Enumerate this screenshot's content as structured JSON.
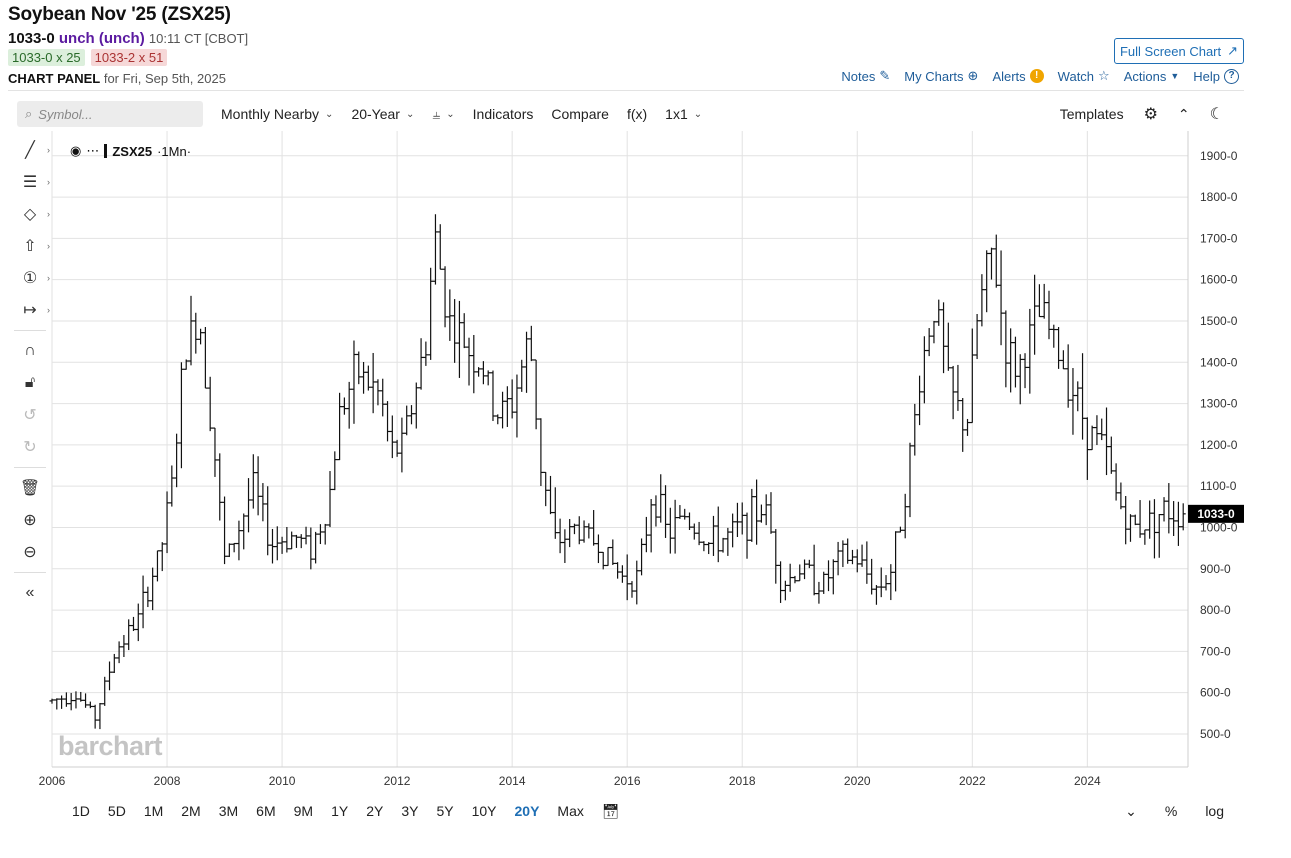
{
  "header": {
    "title": "Soybean Nov '25 (ZSX25)",
    "price": "1033-0",
    "change": "unch (unch)",
    "time": "10:11 CT [CBOT]",
    "bid": "1033-0 x 25",
    "ask": "1033-2 x 51",
    "panel_label": "CHART PANEL",
    "panel_date": "for Fri, Sep 5th, 2025"
  },
  "fullscreen_label": "Full Screen Chart",
  "toplinks": {
    "notes": "Notes",
    "mycharts": "My Charts",
    "alerts": "Alerts",
    "watch": "Watch",
    "actions": "Actions",
    "help": "Help"
  },
  "toolbar": {
    "search_placeholder": "Symbol...",
    "period": "Monthly Nearby",
    "range": "20-Year",
    "indicators": "Indicators",
    "compare": "Compare",
    "fx": "f(x)",
    "layout": "1x1",
    "templates": "Templates"
  },
  "legend": {
    "symbol": "ZSX25",
    "interval": "·1Mn·"
  },
  "watermark": "barchart",
  "bottombar": {
    "ranges": [
      "1D",
      "5D",
      "1M",
      "2M",
      "3M",
      "6M",
      "9M",
      "1Y",
      "2Y",
      "3Y",
      "5Y",
      "10Y",
      "20Y",
      "Max"
    ],
    "active": "20Y",
    "percent": "%",
    "log": "log"
  },
  "colors": {
    "accent": "#1f6fb5",
    "change": "#5b1aa0",
    "bars": "#111111",
    "grid": "#e2e2e2"
  },
  "chart_data": {
    "type": "ohlc",
    "series_name": "ZSX25",
    "x_range": [
      2006.0,
      2025.75
    ],
    "y_range": [
      420,
      1960
    ],
    "x_ticks": [
      {
        "v": 2006,
        "l": "2006"
      },
      {
        "v": 2008,
        "l": "2008"
      },
      {
        "v": 2010,
        "l": "2010"
      },
      {
        "v": 2012,
        "l": "2012"
      },
      {
        "v": 2014,
        "l": "2014"
      },
      {
        "v": 2016,
        "l": "2016"
      },
      {
        "v": 2018,
        "l": "2018"
      },
      {
        "v": 2020,
        "l": "2020"
      },
      {
        "v": 2022,
        "l": "2022"
      },
      {
        "v": 2024,
        "l": "2024"
      }
    ],
    "y_ticks": [
      {
        "v": 500,
        "l": "500-0"
      },
      {
        "v": 600,
        "l": "600-0"
      },
      {
        "v": 700,
        "l": "700-0"
      },
      {
        "v": 800,
        "l": "800-0"
      },
      {
        "v": 900,
        "l": "900-0"
      },
      {
        "v": 1000,
        "l": "1000-0"
      },
      {
        "v": 1100,
        "l": "1100-0"
      },
      {
        "v": 1200,
        "l": "1200-0"
      },
      {
        "v": 1300,
        "l": "1300-0"
      },
      {
        "v": 1400,
        "l": "1400-0"
      },
      {
        "v": 1500,
        "l": "1500-0"
      },
      {
        "v": 1600,
        "l": "1600-0"
      },
      {
        "v": 1700,
        "l": "1700-0"
      },
      {
        "v": 1800,
        "l": "1800-0"
      },
      {
        "v": 1900,
        "l": "1900-0"
      }
    ],
    "last_price": 1033,
    "last_label": "1033-0",
    "keypoints": [
      {
        "t": 2006.0,
        "p": 580
      },
      {
        "t": 2006.4,
        "p": 600
      },
      {
        "t": 2006.75,
        "p": 540
      },
      {
        "t": 2007.1,
        "p": 700
      },
      {
        "t": 2007.5,
        "p": 780
      },
      {
        "t": 2007.9,
        "p": 950
      },
      {
        "t": 2008.1,
        "p": 1120
      },
      {
        "t": 2008.3,
        "p": 1420
      },
      {
        "t": 2008.55,
        "p": 1520
      },
      {
        "t": 2008.8,
        "p": 1220
      },
      {
        "t": 2009.0,
        "p": 920
      },
      {
        "t": 2009.2,
        "p": 980
      },
      {
        "t": 2009.5,
        "p": 1100
      },
      {
        "t": 2009.8,
        "p": 960
      },
      {
        "t": 2010.2,
        "p": 980
      },
      {
        "t": 2010.5,
        "p": 950
      },
      {
        "t": 2010.8,
        "p": 1050
      },
      {
        "t": 2011.0,
        "p": 1280
      },
      {
        "t": 2011.3,
        "p": 1380
      },
      {
        "t": 2011.7,
        "p": 1320
      },
      {
        "t": 2011.9,
        "p": 1180
      },
      {
        "t": 2012.1,
        "p": 1200
      },
      {
        "t": 2012.5,
        "p": 1450
      },
      {
        "t": 2012.65,
        "p": 1710
      },
      {
        "t": 2012.9,
        "p": 1500
      },
      {
        "t": 2013.2,
        "p": 1440
      },
      {
        "t": 2013.5,
        "p": 1380
      },
      {
        "t": 2013.7,
        "p": 1270
      },
      {
        "t": 2014.0,
        "p": 1300
      },
      {
        "t": 2014.3,
        "p": 1460
      },
      {
        "t": 2014.5,
        "p": 1150
      },
      {
        "t": 2014.75,
        "p": 960
      },
      {
        "t": 2015.1,
        "p": 1000
      },
      {
        "t": 2015.5,
        "p": 960
      },
      {
        "t": 2015.9,
        "p": 880
      },
      {
        "t": 2016.2,
        "p": 880
      },
      {
        "t": 2016.45,
        "p": 1100
      },
      {
        "t": 2016.7,
        "p": 980
      },
      {
        "t": 2017.0,
        "p": 1030
      },
      {
        "t": 2017.4,
        "p": 960
      },
      {
        "t": 2017.8,
        "p": 980
      },
      {
        "t": 2018.1,
        "p": 1020
      },
      {
        "t": 2018.4,
        "p": 1050
      },
      {
        "t": 2018.7,
        "p": 860
      },
      {
        "t": 2019.0,
        "p": 900
      },
      {
        "t": 2019.4,
        "p": 860
      },
      {
        "t": 2019.7,
        "p": 930
      },
      {
        "t": 2020.0,
        "p": 920
      },
      {
        "t": 2020.35,
        "p": 850
      },
      {
        "t": 2020.6,
        "p": 900
      },
      {
        "t": 2020.9,
        "p": 1150
      },
      {
        "t": 2021.1,
        "p": 1380
      },
      {
        "t": 2021.35,
        "p": 1550
      },
      {
        "t": 2021.6,
        "p": 1330
      },
      {
        "t": 2021.9,
        "p": 1240
      },
      {
        "t": 2022.1,
        "p": 1520
      },
      {
        "t": 2022.35,
        "p": 1670
      },
      {
        "t": 2022.6,
        "p": 1420
      },
      {
        "t": 2022.8,
        "p": 1380
      },
      {
        "t": 2023.0,
        "p": 1460
      },
      {
        "t": 2023.2,
        "p": 1520
      },
      {
        "t": 2023.5,
        "p": 1420
      },
      {
        "t": 2023.8,
        "p": 1320
      },
      {
        "t": 2024.0,
        "p": 1240
      },
      {
        "t": 2024.3,
        "p": 1190
      },
      {
        "t": 2024.5,
        "p": 1080
      },
      {
        "t": 2024.75,
        "p": 1000
      },
      {
        "t": 2025.0,
        "p": 1010
      },
      {
        "t": 2025.3,
        "p": 1040
      },
      {
        "t": 2025.67,
        "p": 1033
      }
    ]
  }
}
